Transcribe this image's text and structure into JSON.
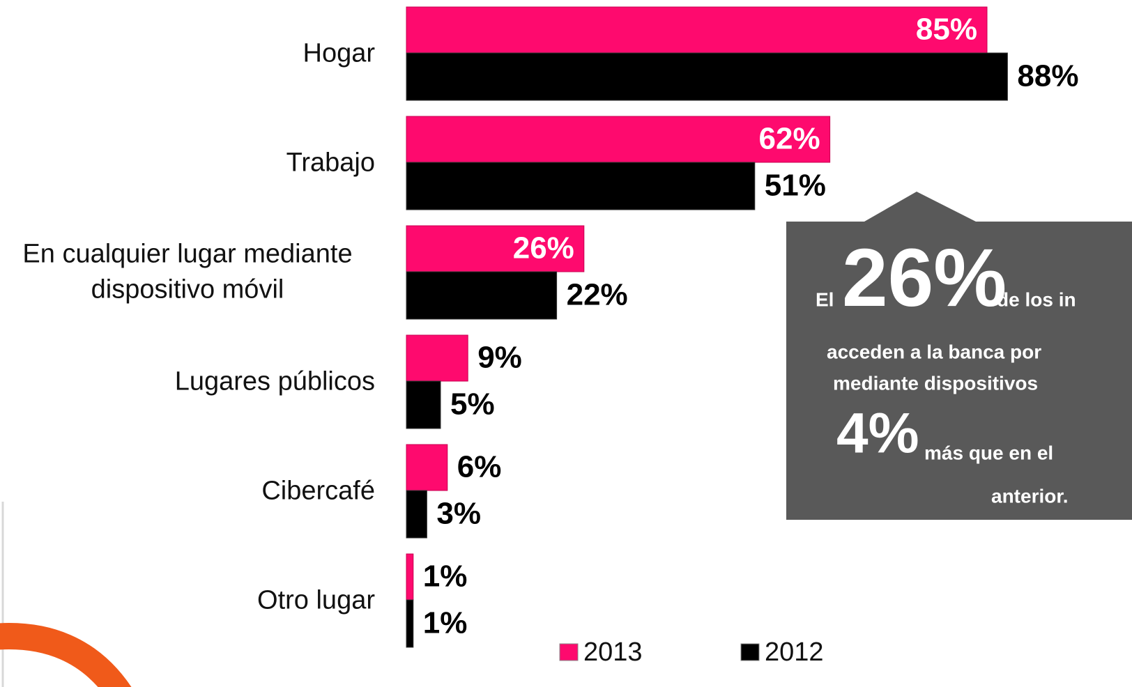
{
  "chart_data": {
    "type": "bar",
    "orientation": "horizontal",
    "categories": [
      "Hogar",
      "Trabajo",
      "En cualquier lugar mediante dispositivo móvil",
      "Lugares públicos",
      "Cibercafé",
      "Otro lugar"
    ],
    "series": [
      {
        "name": "2013",
        "color": "#fe0a6e",
        "values": [
          85,
          62,
          26,
          9,
          6,
          1
        ],
        "value_labels": [
          "85%",
          "62%",
          "26%",
          "9%",
          "6%",
          "1%"
        ]
      },
      {
        "name": "2012",
        "color": "#000000",
        "values": [
          88,
          51,
          22,
          5,
          3,
          1
        ],
        "value_labels": [
          "88%",
          "51%",
          "22%",
          "5%",
          "3%",
          "1%"
        ]
      }
    ],
    "legend": "bottom",
    "callout": {
      "prefix": "El",
      "highlight": "26%",
      "line1_rest": "de los in",
      "line2": "acceden a la banca por",
      "line3": "mediante dispositivos",
      "highlight2": "4%",
      "line4_rest": "más que en el",
      "line5": "anterior."
    }
  }
}
